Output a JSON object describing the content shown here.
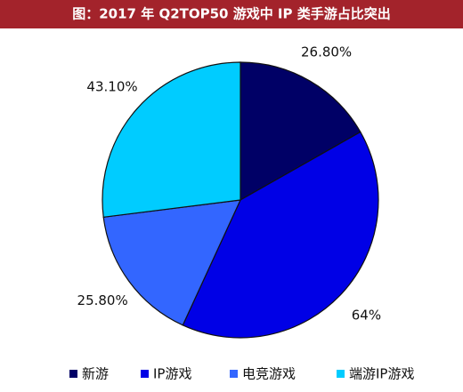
{
  "chart_data": {
    "type": "pie",
    "title": "图：2017 年 Q2TOP50 游戏中 IP 类手游占比突出",
    "categories": [
      "新游",
      "IP游戏",
      "电竞游戏",
      "端游IP游戏"
    ],
    "values": [
      26.8,
      64,
      25.8,
      43.1
    ],
    "value_labels": [
      "26.80%",
      "64%",
      "25.80%",
      "43.10%"
    ],
    "colors": [
      "#000066",
      "#0000e6",
      "#3366ff",
      "#00ccff"
    ],
    "legend": "bottom"
  }
}
